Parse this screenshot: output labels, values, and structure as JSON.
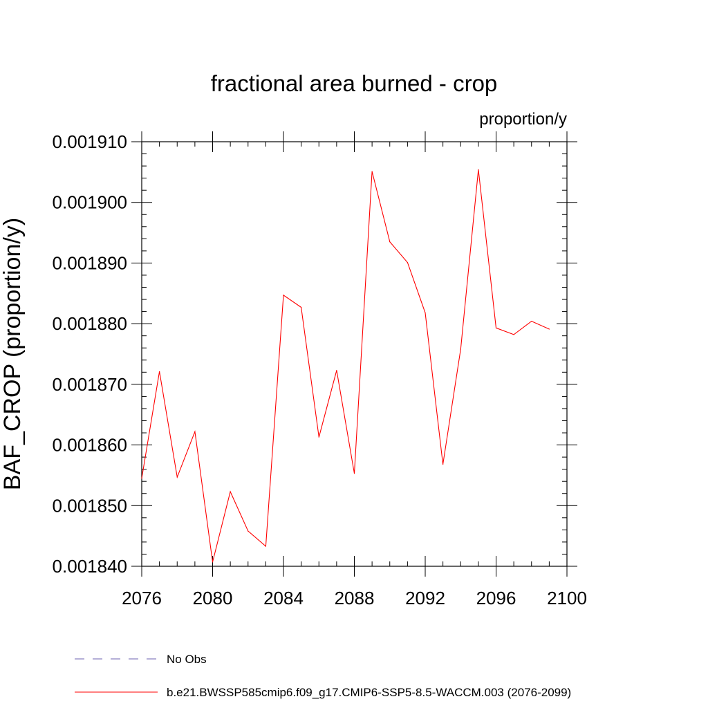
{
  "chart_data": {
    "type": "line",
    "title": "fractional area burned - crop",
    "units_label": "proportion/y",
    "ylabel": "BAF_CROP  (proportion/y)",
    "xlabel": "",
    "xlim": [
      2076,
      2100
    ],
    "ylim": [
      0.00184,
      0.00191
    ],
    "x_major_ticks": [
      2076,
      2080,
      2084,
      2088,
      2092,
      2096,
      2100
    ],
    "x_tick_labels": [
      "2076",
      "2080",
      "2084",
      "2088",
      "2092",
      "2096",
      "2100"
    ],
    "y_major_ticks": [
      0.00184,
      0.00185,
      0.00186,
      0.00187,
      0.00188,
      0.00189,
      0.0019,
      0.00191
    ],
    "y_tick_labels": [
      "0.001840",
      "0.001850",
      "0.001860",
      "0.001870",
      "0.001880",
      "0.001890",
      "0.001900",
      "0.001910"
    ],
    "grid": false,
    "legend_position": "bottom",
    "legend": [
      {
        "label": "No Obs",
        "color": "#6b5fb0",
        "style": "dashed",
        "has_data": false
      },
      {
        "label": "b.e21.BWSSP585cmip6.f09_g17.CMIP6-SSP5-8.5-WACCM.003 (2076-2099)",
        "color": "#ff0000",
        "style": "solid",
        "has_data": true
      }
    ],
    "series": [
      {
        "color": "#ff0000",
        "x": [
          2076,
          2077,
          2078,
          2079,
          2080,
          2081,
          2082,
          2083,
          2084,
          2085,
          2086,
          2087,
          2088,
          2089,
          2090,
          2091,
          2092,
          2093,
          2094,
          2095,
          2096,
          2097,
          2098,
          2099
        ],
        "y": [
          0.0018545,
          0.0018721,
          0.0018547,
          0.0018622,
          0.0018407,
          0.0018523,
          0.0018458,
          0.0018433,
          0.0018847,
          0.0018827,
          0.0018613,
          0.0018723,
          0.0018553,
          0.0019051,
          0.0018935,
          0.0018901,
          0.0018818,
          0.0018568,
          0.0018758,
          0.0019054,
          0.0018793,
          0.0018782,
          0.0018804,
          0.0018791
        ]
      }
    ]
  }
}
